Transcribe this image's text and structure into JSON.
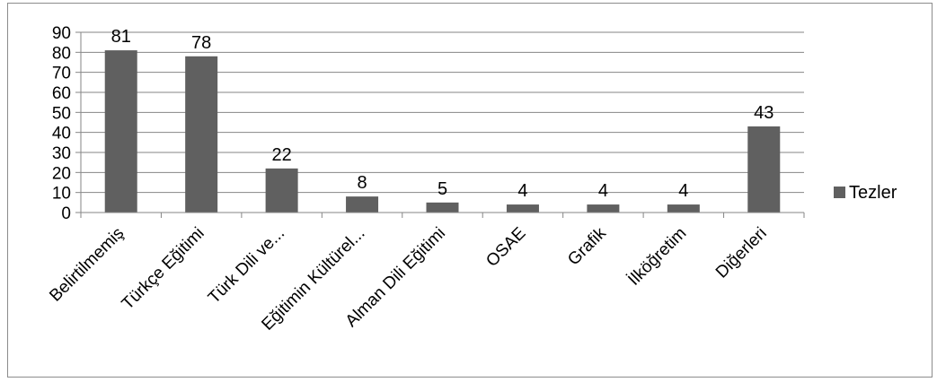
{
  "chart_data": {
    "type": "bar",
    "categories": [
      "Belirtilmemiş",
      "Türkçe Eğitimi",
      "Türk Dili ve...",
      "Eğitimin Kültürel...",
      "Alman Dili Eğitimi",
      "OSAE",
      "Grafik",
      "İlköğretim",
      "Diğerleri"
    ],
    "series": [
      {
        "name": "Tezler",
        "values": [
          81,
          78,
          22,
          8,
          5,
          4,
          4,
          4,
          43
        ]
      }
    ],
    "ylim": [
      0,
      90
    ],
    "yticks": [
      0,
      10,
      20,
      30,
      40,
      50,
      60,
      70,
      80,
      90
    ],
    "grid": true,
    "legend": "right",
    "data_labels": true,
    "colors": {
      "bar": "#606060",
      "grid": "#868686",
      "axis": "#868686"
    }
  }
}
